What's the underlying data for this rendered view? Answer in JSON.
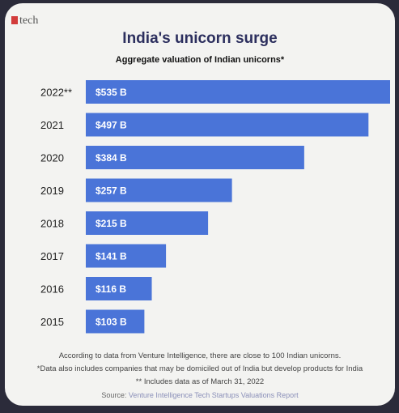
{
  "brand": {
    "name": "tech",
    "mark_color": "#d23b3b"
  },
  "title": "India's unicorn surge",
  "subtitle": "Aggregate valuation of Indian unicorns*",
  "chart_data": {
    "type": "bar",
    "orientation": "horizontal",
    "title": "India's unicorn surge",
    "subtitle": "Aggregate valuation of Indian unicorns*",
    "categories": [
      "2022**",
      "2021",
      "2020",
      "2019",
      "2018",
      "2017",
      "2016",
      "2015"
    ],
    "values": [
      535,
      497,
      384,
      257,
      215,
      141,
      116,
      103
    ],
    "value_labels": [
      "$535 B",
      "$497 B",
      "$384 B",
      "$257 B",
      "$215 B",
      "$141 B",
      "$116 B",
      "$103 B"
    ],
    "unit": "B",
    "xlim": [
      0,
      535
    ],
    "bar_color": "#4a74d8",
    "grid": false,
    "legend": "none"
  },
  "notes": {
    "line1": "According to data from Venture Intelligence, there are close to 100 Indian unicorns.",
    "line2": "*Data also includes companies that may be domiciled out of India but develop products for India",
    "line3": "** Includes data as of March 31, 2022",
    "source_label": "Source:",
    "source_text": "Venture Intelligence Tech Startups Valuations Report"
  }
}
